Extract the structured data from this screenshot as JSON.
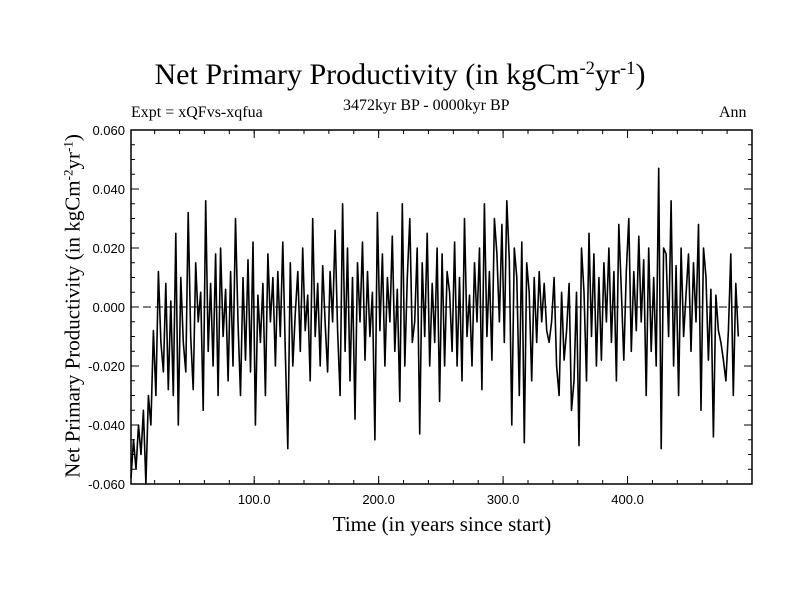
{
  "chart_data": {
    "type": "line",
    "title": "Net Primary Productivity (in kgCm",
    "title_sup1": "-2",
    "title_mid": "yr",
    "title_sup2": "-1",
    "title_end": ")",
    "expt_label": "Expt = xQFvs-xqfua",
    "period_label": "3472kyr BP - 0000kyr BP",
    "season_label": "Ann",
    "xlabel": "Time (in years since start)",
    "ylabel": "Net Primary Productivity (in kgCm",
    "ylabel_sup1": "-2",
    "ylabel_mid": "yr",
    "ylabel_sup2": "-1",
    "ylabel_end": ")",
    "xlim": [
      1,
      500
    ],
    "ylim": [
      -0.06,
      0.06
    ],
    "x_ticks": [
      100,
      200,
      300,
      400
    ],
    "x_tick_labels": [
      "100.0",
      "200.0",
      "300.0",
      "400.0"
    ],
    "y_ticks": [
      -0.06,
      -0.04,
      -0.02,
      0.0,
      0.02,
      0.04,
      0.06
    ],
    "y_tick_labels": [
      "-0.060",
      "-0.040",
      "-0.020",
      "0.000",
      "0.020",
      "0.040",
      "0.060"
    ],
    "zero_line": 0.0,
    "series": [
      {
        "name": "Ann",
        "x_start": 1,
        "x_step": 2,
        "values": [
          -0.058,
          -0.045,
          -0.055,
          -0.04,
          -0.05,
          -0.035,
          -0.06,
          -0.03,
          -0.04,
          -0.008,
          -0.03,
          0.012,
          -0.012,
          -0.022,
          0.008,
          -0.028,
          0.002,
          -0.03,
          0.025,
          -0.04,
          0.01,
          -0.012,
          -0.022,
          0.032,
          -0.01,
          -0.028,
          0.015,
          -0.005,
          0.005,
          -0.035,
          0.036,
          -0.015,
          0.008,
          -0.02,
          0.018,
          -0.03,
          0.02,
          -0.01,
          0.006,
          -0.025,
          0.012,
          -0.02,
          0.03,
          -0.005,
          -0.03,
          0.01,
          -0.018,
          0.016,
          -0.022,
          0.022,
          -0.04,
          0.004,
          -0.012,
          0.008,
          -0.03,
          0.018,
          -0.005,
          0.01,
          -0.02,
          0.012,
          -0.01,
          0.022,
          -0.015,
          -0.048,
          0.015,
          -0.02,
          -0.002,
          0.012,
          -0.015,
          0.02,
          -0.008,
          0.004,
          -0.025,
          0.03,
          -0.01,
          0.008,
          -0.02,
          0.014,
          -0.005,
          -0.022,
          0.012,
          -0.005,
          0.026,
          -0.008,
          -0.03,
          0.035,
          -0.015,
          0.02,
          -0.025,
          0.01,
          -0.038,
          0.015,
          -0.005,
          0.022,
          -0.018,
          0.012,
          -0.01,
          0.005,
          -0.045,
          0.032,
          -0.008,
          0.018,
          -0.02,
          0.01,
          -0.005,
          0.024,
          -0.015,
          0.006,
          -0.032,
          0.035,
          -0.02,
          0.01,
          0.03,
          -0.012,
          -0.005,
          0.02,
          -0.043,
          0.015,
          -0.01,
          0.025,
          -0.02,
          0.008,
          -0.012,
          0.02,
          -0.032,
          0.018,
          -0.02,
          0.012,
          0.005,
          -0.015,
          0.022,
          -0.02,
          0.01,
          -0.025,
          0.03,
          -0.01,
          0.004,
          -0.02,
          0.015,
          -0.005,
          0.02,
          -0.028,
          0.035,
          -0.01,
          0.012,
          -0.018,
          0.03,
          0.018,
          -0.005,
          0.028,
          -0.012,
          0.036,
          0.016,
          -0.04,
          0.02,
          0.01,
          -0.03,
          0.022,
          -0.046,
          0.015,
          0.005,
          -0.025,
          0.01,
          -0.012,
          0.012,
          -0.005,
          0.008,
          -0.008,
          -0.012,
          -0.005,
          0.01,
          -0.02,
          -0.03,
          0.005,
          -0.018,
          -0.008,
          0.008,
          -0.035,
          -0.025,
          0.005,
          -0.047,
          0.02,
          0.005,
          -0.025,
          0.025,
          -0.01,
          0.018,
          -0.02,
          0.01,
          -0.018,
          0.015,
          -0.005,
          0.02,
          -0.012,
          0.012,
          -0.025,
          0.028,
          0.006,
          -0.018,
          0.012,
          0.03,
          -0.015,
          0.012,
          -0.008,
          0.024,
          -0.005,
          0.016,
          -0.03,
          0.02,
          -0.015,
          0.01,
          -0.02,
          0.047,
          -0.048,
          0.02,
          0.018,
          -0.01,
          0.036,
          -0.02,
          0.014,
          -0.03,
          0.02,
          -0.01,
          0.004,
          0.018,
          -0.015,
          0.015,
          -0.005,
          0.028,
          -0.035,
          0.02,
          0.01,
          -0.018,
          0.006,
          -0.044,
          0.004,
          -0.008,
          -0.012,
          -0.018,
          -0.025,
          -0.008,
          0.018,
          -0.03,
          0.008,
          -0.01
        ]
      }
    ]
  }
}
